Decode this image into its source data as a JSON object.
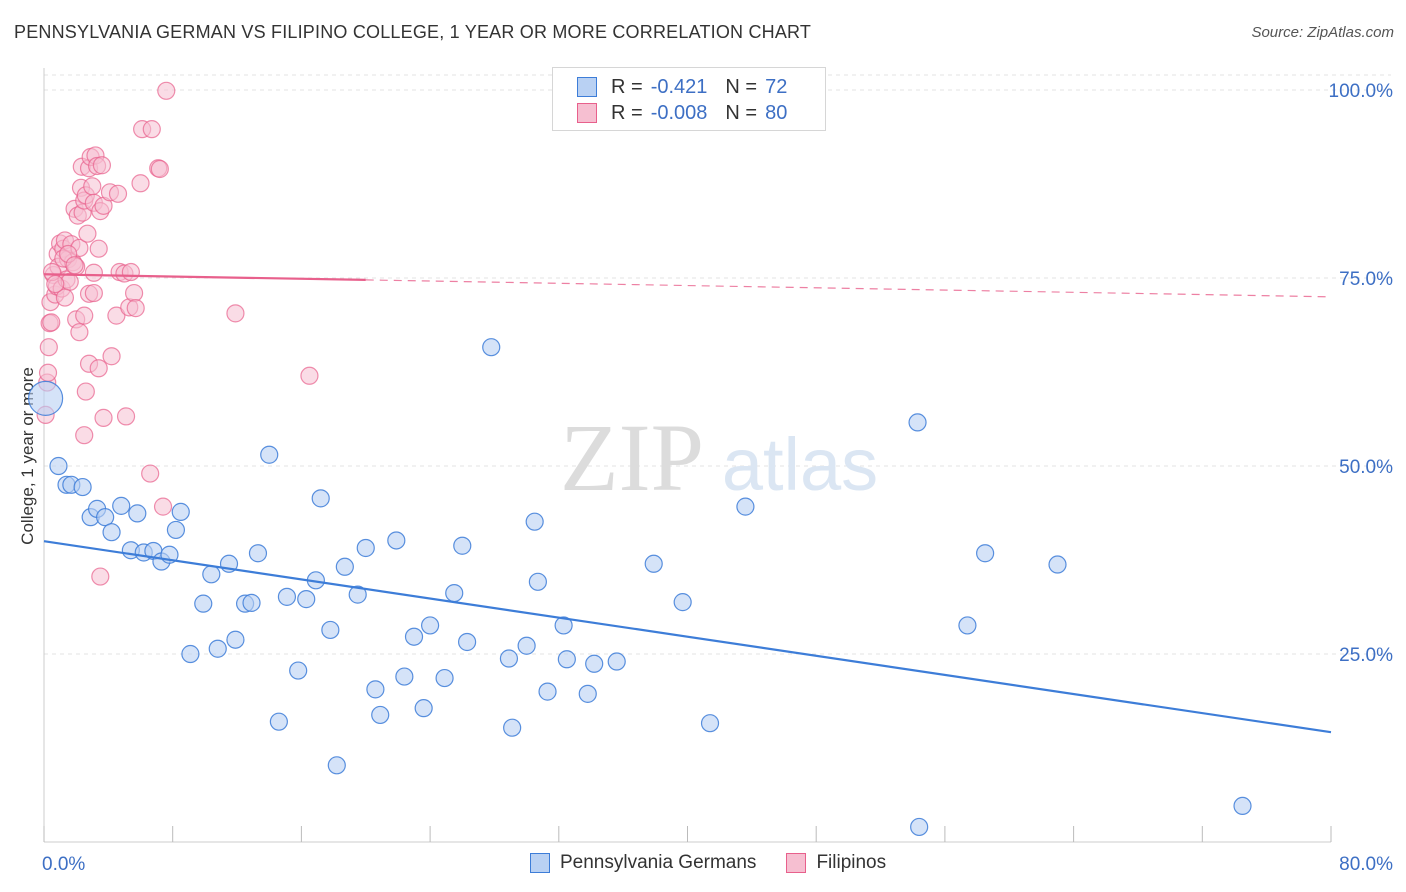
{
  "title": "PENNSYLVANIA GERMAN VS FILIPINO COLLEGE, 1 YEAR OR MORE CORRELATION CHART",
  "source": "Source: ZipAtlas.com",
  "watermark": {
    "zip": "ZIP",
    "atlas": "atlas"
  },
  "colors": {
    "blue": "#3d7dd8",
    "blue_fill": "#b9d1f3",
    "pink": "#e8608c",
    "pink_fill": "#f6bfd1",
    "tick_label": "#3d6fc4",
    "grid": "#e3e3e3"
  },
  "legend_top": [
    {
      "r_label": "R =",
      "r_value": "-0.421",
      "n_label": "N =",
      "n_value": "72"
    },
    {
      "r_label": "R =",
      "r_value": "-0.008",
      "n_label": "N =",
      "n_value": "80"
    }
  ],
  "bottom_legend": [
    "Pennsylvania Germans",
    "Filipinos"
  ],
  "chart_data": {
    "type": "scatter",
    "title": "PENNSYLVANIA GERMAN VS FILIPINO COLLEGE, 1 YEAR OR MORE CORRELATION CHART",
    "xlabel": "",
    "ylabel": "College, 1 year or more",
    "xlim": [
      0,
      80
    ],
    "ylim": [
      0,
      102
    ],
    "x_tick_labels": [
      "0.0%",
      "80.0%"
    ],
    "y_ticks": [
      25,
      50,
      75,
      100
    ],
    "y_tick_labels": [
      "25.0%",
      "50.0%",
      "75.0%",
      "100.0%"
    ],
    "grid": true,
    "legend_position": "top-center",
    "series": [
      {
        "name": "Pennsylvania Germans",
        "r": -0.421,
        "n": 72,
        "trend": {
          "x": [
            0,
            80
          ],
          "y": [
            40.0,
            14.6
          ]
        },
        "points": [
          [
            0.1,
            59.0
          ],
          [
            0.9,
            50.0
          ],
          [
            1.4,
            47.5
          ],
          [
            1.7,
            47.5
          ],
          [
            2.4,
            47.2
          ],
          [
            2.9,
            43.2
          ],
          [
            3.3,
            44.3
          ],
          [
            3.8,
            43.2
          ],
          [
            4.2,
            41.2
          ],
          [
            4.8,
            44.7
          ],
          [
            5.4,
            38.8
          ],
          [
            5.8,
            43.7
          ],
          [
            6.2,
            38.5
          ],
          [
            6.8,
            38.7
          ],
          [
            7.3,
            37.3
          ],
          [
            7.8,
            38.2
          ],
          [
            8.2,
            41.5
          ],
          [
            8.5,
            43.9
          ],
          [
            9.1,
            25.0
          ],
          [
            9.9,
            31.7
          ],
          [
            10.4,
            35.6
          ],
          [
            10.8,
            25.7
          ],
          [
            11.5,
            37.0
          ],
          [
            11.9,
            26.9
          ],
          [
            12.5,
            31.7
          ],
          [
            12.9,
            31.8
          ],
          [
            13.3,
            38.4
          ],
          [
            14.0,
            51.5
          ],
          [
            14.6,
            16.0
          ],
          [
            15.1,
            32.6
          ],
          [
            15.8,
            22.8
          ],
          [
            16.3,
            32.3
          ],
          [
            16.9,
            34.8
          ],
          [
            17.2,
            45.7
          ],
          [
            17.8,
            28.2
          ],
          [
            18.2,
            10.2
          ],
          [
            18.7,
            36.6
          ],
          [
            19.5,
            32.9
          ],
          [
            20.0,
            39.1
          ],
          [
            20.6,
            20.3
          ],
          [
            20.9,
            16.9
          ],
          [
            21.9,
            40.1
          ],
          [
            22.4,
            22.0
          ],
          [
            23.0,
            27.3
          ],
          [
            23.6,
            17.8
          ],
          [
            24.0,
            28.8
          ],
          [
            24.9,
            21.8
          ],
          [
            25.5,
            33.1
          ],
          [
            26.0,
            39.4
          ],
          [
            26.3,
            26.6
          ],
          [
            27.8,
            65.8
          ],
          [
            28.9,
            24.4
          ],
          [
            29.1,
            15.2
          ],
          [
            30.0,
            26.1
          ],
          [
            30.5,
            42.6
          ],
          [
            30.7,
            34.6
          ],
          [
            31.3,
            20.0
          ],
          [
            32.3,
            28.8
          ],
          [
            32.5,
            24.3
          ],
          [
            33.8,
            19.7
          ],
          [
            34.2,
            23.7
          ],
          [
            35.6,
            24.0
          ],
          [
            37.9,
            37.0
          ],
          [
            39.7,
            31.9
          ],
          [
            41.4,
            15.8
          ],
          [
            43.6,
            44.6
          ],
          [
            54.3,
            55.8
          ],
          [
            54.4,
            2.0
          ],
          [
            57.4,
            28.8
          ],
          [
            58.5,
            38.4
          ],
          [
            63.0,
            36.9
          ],
          [
            74.5,
            4.8
          ]
        ]
      },
      {
        "name": "Filipinos",
        "r": -0.008,
        "n": 80,
        "trend": {
          "x": [
            0,
            80
          ],
          "y": [
            75.5,
            72.5
          ]
        },
        "points": [
          [
            0.1,
            56.8
          ],
          [
            0.2,
            61.1
          ],
          [
            0.25,
            62.4
          ],
          [
            0.3,
            65.8
          ],
          [
            0.35,
            69.0
          ],
          [
            0.4,
            71.8
          ],
          [
            0.45,
            69.1
          ],
          [
            0.6,
            75.4
          ],
          [
            0.7,
            72.8
          ],
          [
            0.8,
            73.9
          ],
          [
            0.85,
            78.2
          ],
          [
            0.9,
            76.5
          ],
          [
            1.0,
            79.6
          ],
          [
            1.1,
            73.6
          ],
          [
            1.2,
            78.9
          ],
          [
            1.3,
            80.0
          ],
          [
            1.4,
            74.8
          ],
          [
            1.5,
            77.5
          ],
          [
            1.6,
            74.5
          ],
          [
            1.7,
            79.5
          ],
          [
            1.8,
            77.1
          ],
          [
            1.9,
            84.2
          ],
          [
            2.0,
            76.5
          ],
          [
            2.1,
            83.3
          ],
          [
            2.2,
            79.0
          ],
          [
            2.3,
            87.0
          ],
          [
            2.35,
            89.8
          ],
          [
            2.4,
            83.7
          ],
          [
            2.5,
            85.3
          ],
          [
            2.6,
            86.0
          ],
          [
            2.7,
            80.9
          ],
          [
            2.8,
            89.6
          ],
          [
            2.9,
            91.1
          ],
          [
            3.0,
            87.2
          ],
          [
            3.1,
            85.0
          ],
          [
            3.2,
            91.3
          ],
          [
            3.3,
            89.9
          ],
          [
            3.4,
            78.9
          ],
          [
            3.5,
            83.9
          ],
          [
            3.6,
            90.0
          ],
          [
            3.7,
            84.6
          ],
          [
            1.3,
            72.4
          ],
          [
            2.0,
            69.5
          ],
          [
            2.2,
            67.8
          ],
          [
            2.5,
            70.0
          ],
          [
            2.8,
            63.6
          ],
          [
            2.6,
            59.9
          ],
          [
            2.5,
            54.1
          ],
          [
            3.1,
            75.7
          ],
          [
            3.4,
            63.0
          ],
          [
            3.7,
            56.4
          ],
          [
            3.5,
            35.3
          ],
          [
            4.1,
            86.4
          ],
          [
            4.2,
            64.6
          ],
          [
            4.5,
            70.0
          ],
          [
            4.6,
            86.2
          ],
          [
            4.7,
            75.8
          ],
          [
            5.0,
            75.6
          ],
          [
            5.1,
            56.6
          ],
          [
            5.3,
            71.1
          ],
          [
            5.4,
            75.8
          ],
          [
            5.6,
            73.0
          ],
          [
            5.7,
            71.0
          ],
          [
            6.0,
            87.6
          ],
          [
            6.1,
            94.8
          ],
          [
            6.6,
            49.0
          ],
          [
            6.7,
            94.8
          ],
          [
            7.1,
            89.6
          ],
          [
            7.2,
            89.5
          ],
          [
            7.4,
            44.6
          ],
          [
            7.6,
            99.9
          ],
          [
            11.9,
            70.3
          ],
          [
            16.5,
            62.0
          ],
          [
            0.5,
            75.8
          ],
          [
            1.2,
            77.6
          ],
          [
            1.5,
            78.2
          ],
          [
            2.8,
            72.9
          ],
          [
            0.7,
            74.2
          ],
          [
            1.9,
            76.7
          ],
          [
            3.1,
            73.0
          ]
        ]
      }
    ]
  }
}
